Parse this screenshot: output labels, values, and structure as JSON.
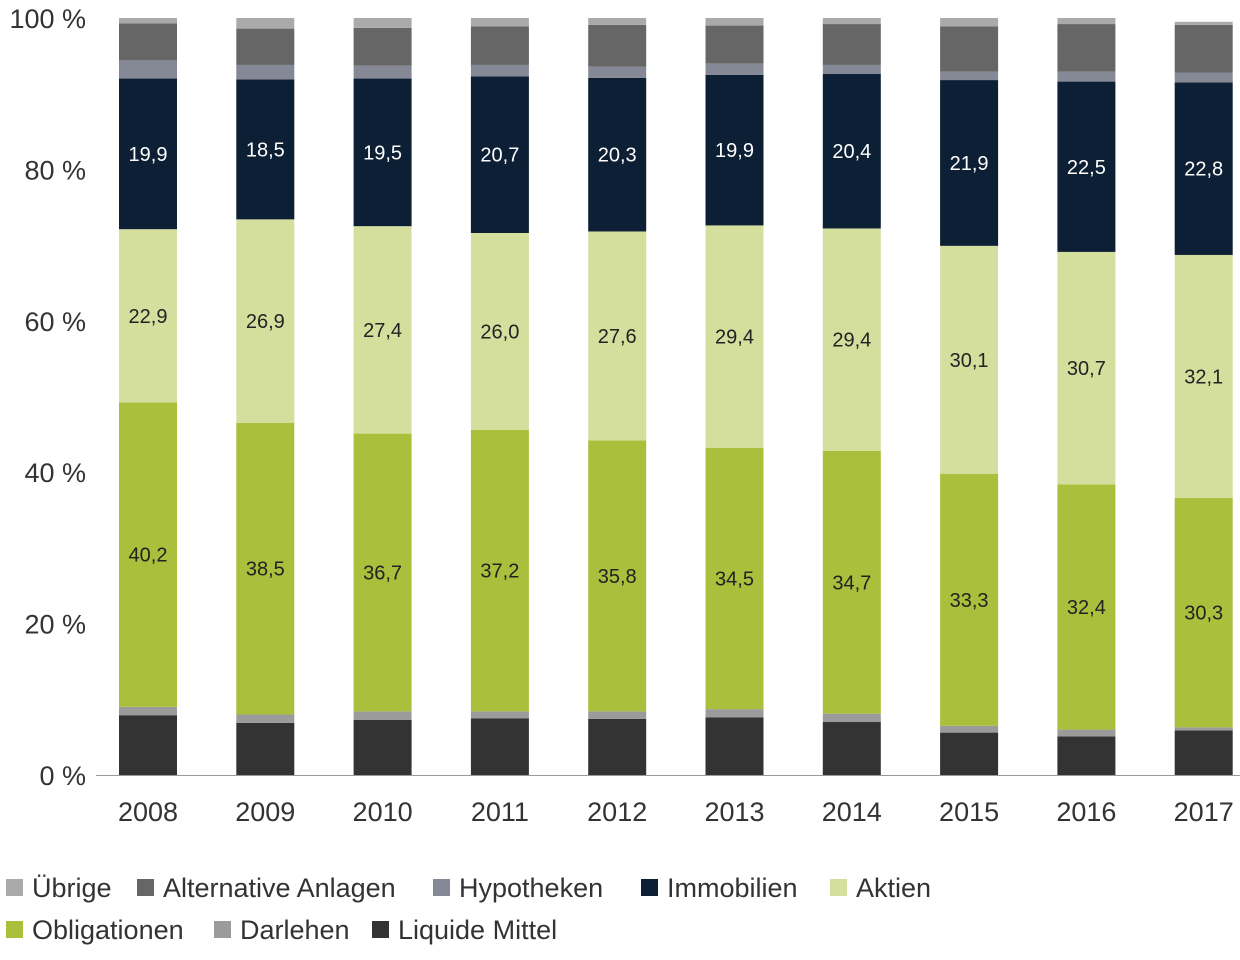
{
  "chart_data": {
    "type": "bar",
    "stacked": true,
    "categories": [
      "2008",
      "2009",
      "2010",
      "2011",
      "2012",
      "2013",
      "2014",
      "2015",
      "2016",
      "2017"
    ],
    "ylim": [
      0,
      100
    ],
    "y_ticks": [
      0,
      20,
      40,
      60,
      80,
      100
    ],
    "y_tick_labels": [
      "0 %",
      "20 %",
      "40 %",
      "60 %",
      "80 %",
      "100 %"
    ],
    "grid": false,
    "legend_position": "bottom",
    "series": [
      {
        "name": "Liquide Mittel",
        "color": "#333333",
        "values": [
          7.9,
          6.9,
          7.3,
          7.5,
          7.4,
          7.6,
          7.0,
          5.6,
          5.1,
          5.9
        ],
        "labels": [
          "",
          "",
          "",
          "",
          "",
          "",
          "",
          "",
          "",
          ""
        ]
      },
      {
        "name": "Darlehen",
        "color": "#9b9b9b",
        "values": [
          1.1,
          1.1,
          1.1,
          0.9,
          1.0,
          1.1,
          1.1,
          0.9,
          0.9,
          0.4
        ],
        "labels": [
          "",
          "",
          "",
          "",
          "",
          "",
          "",
          "",
          "",
          ""
        ]
      },
      {
        "name": "Obligationen",
        "color": "#aabf3c",
        "values": [
          40.2,
          38.5,
          36.7,
          37.2,
          35.8,
          34.5,
          34.7,
          33.3,
          32.4,
          30.3
        ],
        "labels": [
          "40,2",
          "38,5",
          "36,7",
          "37,2",
          "35,8",
          "34,5",
          "34,7",
          "33,3",
          "32,4",
          "30,3"
        ]
      },
      {
        "name": "Aktien",
        "color": "#d4df9e",
        "values": [
          22.9,
          26.9,
          27.4,
          26.0,
          27.6,
          29.4,
          29.4,
          30.1,
          30.7,
          32.1
        ],
        "labels": [
          "22,9",
          "26,9",
          "27,4",
          "26,0",
          "27,6",
          "29,4",
          "29,4",
          "30,1",
          "30,7",
          "32,1"
        ]
      },
      {
        "name": "Immobilien",
        "color": "#0d1f35",
        "values": [
          19.9,
          18.5,
          19.5,
          20.7,
          20.3,
          19.9,
          20.4,
          21.9,
          22.5,
          22.8
        ],
        "labels": [
          "19,9",
          "18,5",
          "19,5",
          "20,7",
          "20,3",
          "19,9",
          "20,4",
          "21,9",
          "22,5",
          "22,8"
        ]
      },
      {
        "name": "Hypotheken",
        "color": "#858995",
        "values": [
          2.4,
          1.9,
          1.7,
          1.5,
          1.5,
          1.5,
          1.2,
          1.1,
          1.3,
          1.3
        ],
        "labels": [
          "",
          "",
          "",
          "",
          "",
          "",
          "",
          "",
          "",
          ""
        ]
      },
      {
        "name": "Alternative Anlagen",
        "color": "#666666",
        "values": [
          4.9,
          4.8,
          5.0,
          5.1,
          5.5,
          5.0,
          5.4,
          6.0,
          6.3,
          6.3
        ],
        "labels": [
          "",
          "",
          "",
          "",
          "",
          "",
          "",
          "",
          "",
          ""
        ]
      },
      {
        "name": "Übrige",
        "color": "#aaaaaa",
        "values": [
          0.7,
          1.4,
          1.3,
          1.1,
          0.9,
          1.0,
          0.8,
          1.1,
          0.8,
          0.4
        ],
        "labels": [
          "",
          "",
          "",
          "",
          "",
          "",
          "",
          "",
          "",
          ""
        ]
      }
    ],
    "legend_order": [
      "Übrige",
      "Alternative Anlagen",
      "Hypotheken",
      "Immobilien",
      "Aktien",
      "Obligationen",
      "Darlehen",
      "Liquide Mittel"
    ],
    "label_text_colors": {
      "Obligationen": "#222222",
      "Aktien": "#222222",
      "Immobilien": "#ffffff"
    },
    "axis_color": "#999999"
  }
}
